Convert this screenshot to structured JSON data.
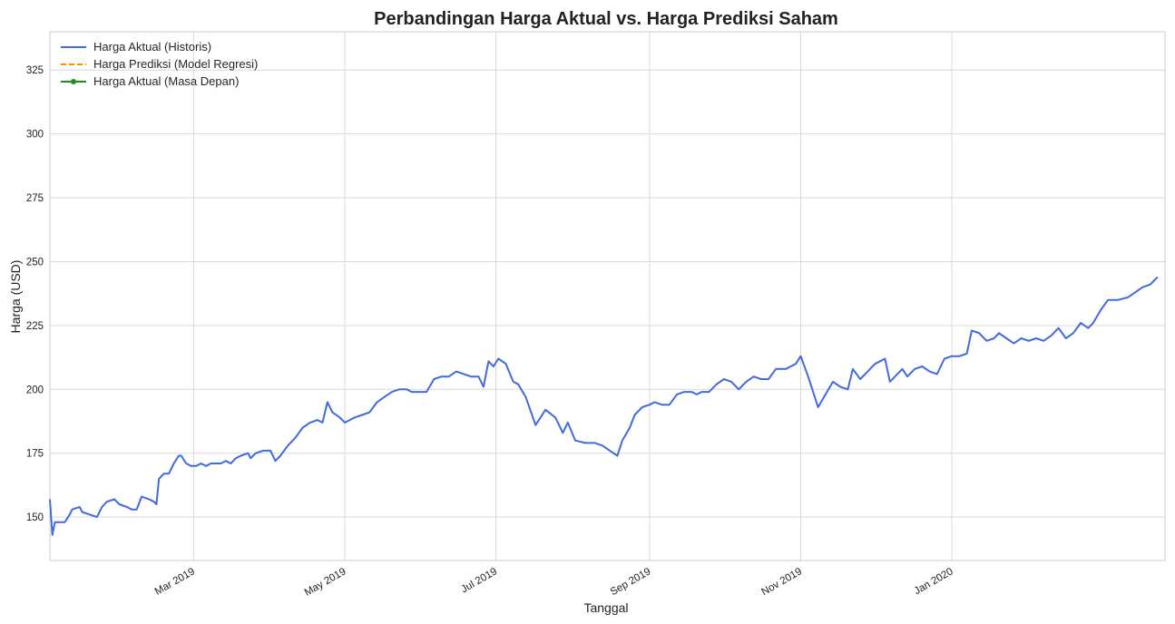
{
  "chart_data": {
    "type": "line",
    "title": "Perbandingan Harga Aktual vs. Harga Prediksi Saham",
    "xlabel": "Tanggal",
    "ylabel": "Harga (USD)",
    "xlim": [
      "2019-01-02",
      "2020-03-27"
    ],
    "ylim": [
      133,
      340
    ],
    "grid": true,
    "legend_position": "top-left",
    "x_ticks": [
      {
        "date": "2019-03-01",
        "label": "Mar 2019"
      },
      {
        "date": "2019-05-01",
        "label": "May 2019"
      },
      {
        "date": "2019-07-01",
        "label": "Jul 2019"
      },
      {
        "date": "2019-09-01",
        "label": "Sep 2019"
      },
      {
        "date": "2019-11-01",
        "label": "Nov 2019"
      },
      {
        "date": "2020-01-01",
        "label": "Jan 2020"
      }
    ],
    "y_ticks": [
      150,
      175,
      200,
      225,
      250,
      275,
      300,
      325
    ],
    "series": [
      {
        "name": "Harga Aktual (Historis)",
        "color": "#4169e1",
        "style": "solid",
        "points": [
          [
            "2019-01-02",
            157
          ],
          [
            "2019-01-03",
            143
          ],
          [
            "2019-01-04",
            148
          ],
          [
            "2019-01-07",
            148
          ],
          [
            "2019-01-08",
            148
          ],
          [
            "2019-01-10",
            151
          ],
          [
            "2019-01-11",
            153
          ],
          [
            "2019-01-14",
            154
          ],
          [
            "2019-01-15",
            152
          ],
          [
            "2019-01-18",
            151
          ],
          [
            "2019-01-21",
            150
          ],
          [
            "2019-01-23",
            154
          ],
          [
            "2019-01-25",
            156
          ],
          [
            "2019-01-28",
            157
          ],
          [
            "2019-01-30",
            155
          ],
          [
            "2019-02-02",
            154
          ],
          [
            "2019-02-04",
            153
          ],
          [
            "2019-02-06",
            153
          ],
          [
            "2019-02-08",
            158
          ],
          [
            "2019-02-11",
            157
          ],
          [
            "2019-02-13",
            156
          ],
          [
            "2019-02-14",
            155
          ],
          [
            "2019-02-15",
            165
          ],
          [
            "2019-02-17",
            167
          ],
          [
            "2019-02-19",
            167
          ],
          [
            "2019-02-21",
            171
          ],
          [
            "2019-02-23",
            174
          ],
          [
            "2019-02-24",
            174
          ],
          [
            "2019-02-26",
            171
          ],
          [
            "2019-02-28",
            170
          ],
          [
            "2019-03-02",
            170
          ],
          [
            "2019-03-04",
            171
          ],
          [
            "2019-03-06",
            170
          ],
          [
            "2019-03-08",
            171
          ],
          [
            "2019-03-12",
            171
          ],
          [
            "2019-03-14",
            172
          ],
          [
            "2019-03-16",
            171
          ],
          [
            "2019-03-18",
            173
          ],
          [
            "2019-03-20",
            174
          ],
          [
            "2019-03-23",
            175
          ],
          [
            "2019-03-24",
            173
          ],
          [
            "2019-03-26",
            175
          ],
          [
            "2019-03-29",
            176
          ],
          [
            "2019-04-01",
            176
          ],
          [
            "2019-04-03",
            172
          ],
          [
            "2019-04-05",
            174
          ],
          [
            "2019-04-08",
            178
          ],
          [
            "2019-04-11",
            181
          ],
          [
            "2019-04-14",
            185
          ],
          [
            "2019-04-17",
            187
          ],
          [
            "2019-04-20",
            188
          ],
          [
            "2019-04-22",
            187
          ],
          [
            "2019-04-24",
            195
          ],
          [
            "2019-04-26",
            191
          ],
          [
            "2019-04-29",
            189
          ],
          [
            "2019-05-01",
            187
          ],
          [
            "2019-05-03",
            188
          ],
          [
            "2019-05-05",
            189
          ],
          [
            "2019-05-08",
            190
          ],
          [
            "2019-05-11",
            191
          ],
          [
            "2019-05-14",
            195
          ],
          [
            "2019-05-17",
            197
          ],
          [
            "2019-05-20",
            199
          ],
          [
            "2019-05-23",
            200
          ],
          [
            "2019-05-26",
            200
          ],
          [
            "2019-05-28",
            199
          ],
          [
            "2019-05-31",
            199
          ],
          [
            "2019-06-03",
            199
          ],
          [
            "2019-06-06",
            204
          ],
          [
            "2019-06-09",
            205
          ],
          [
            "2019-06-12",
            205
          ],
          [
            "2019-06-15",
            207
          ],
          [
            "2019-06-18",
            206
          ],
          [
            "2019-06-21",
            205
          ],
          [
            "2019-06-24",
            205
          ],
          [
            "2019-06-26",
            201
          ],
          [
            "2019-06-28",
            211
          ],
          [
            "2019-06-30",
            209
          ],
          [
            "2019-07-02",
            212
          ],
          [
            "2019-07-05",
            210
          ],
          [
            "2019-07-08",
            203
          ],
          [
            "2019-07-10",
            202
          ],
          [
            "2019-07-13",
            197
          ],
          [
            "2019-07-17",
            186
          ],
          [
            "2019-07-21",
            192
          ],
          [
            "2019-07-25",
            189
          ],
          [
            "2019-07-28",
            183
          ],
          [
            "2019-07-30",
            187
          ],
          [
            "2019-08-02",
            180
          ],
          [
            "2019-08-06",
            179
          ],
          [
            "2019-08-10",
            179
          ],
          [
            "2019-08-13",
            178
          ],
          [
            "2019-08-16",
            176
          ],
          [
            "2019-08-19",
            174
          ],
          [
            "2019-08-21",
            180
          ],
          [
            "2019-08-24",
            185
          ],
          [
            "2019-08-26",
            190
          ],
          [
            "2019-08-29",
            193
          ],
          [
            "2019-09-01",
            194
          ],
          [
            "2019-09-03",
            195
          ],
          [
            "2019-09-06",
            194
          ],
          [
            "2019-09-09",
            194
          ],
          [
            "2019-09-12",
            198
          ],
          [
            "2019-09-15",
            199
          ],
          [
            "2019-09-18",
            199
          ],
          [
            "2019-09-20",
            198
          ],
          [
            "2019-09-22",
            199
          ],
          [
            "2019-09-25",
            199
          ],
          [
            "2019-09-28",
            202
          ],
          [
            "2019-10-01",
            204
          ],
          [
            "2019-10-04",
            203
          ],
          [
            "2019-10-07",
            200
          ],
          [
            "2019-10-10",
            203
          ],
          [
            "2019-10-13",
            205
          ],
          [
            "2019-10-16",
            204
          ],
          [
            "2019-10-19",
            204
          ],
          [
            "2019-10-22",
            208
          ],
          [
            "2019-10-26",
            208
          ],
          [
            "2019-10-30",
            210
          ],
          [
            "2019-11-01",
            213
          ],
          [
            "2019-11-04",
            205
          ],
          [
            "2019-11-08",
            193
          ],
          [
            "2019-11-11",
            198
          ],
          [
            "2019-11-14",
            203
          ],
          [
            "2019-11-17",
            201
          ],
          [
            "2019-11-20",
            200
          ],
          [
            "2019-11-22",
            208
          ],
          [
            "2019-11-25",
            204
          ],
          [
            "2019-11-28",
            207
          ],
          [
            "2019-12-01",
            210
          ],
          [
            "2019-12-03",
            211
          ],
          [
            "2019-12-05",
            212
          ],
          [
            "2019-12-07",
            203
          ],
          [
            "2019-12-10",
            206
          ],
          [
            "2019-12-12",
            208
          ],
          [
            "2019-12-14",
            205
          ],
          [
            "2019-12-17",
            208
          ],
          [
            "2019-12-20",
            209
          ],
          [
            "2019-12-23",
            207
          ],
          [
            "2019-12-26",
            206
          ],
          [
            "2019-12-29",
            212
          ],
          [
            "2020-01-01",
            213
          ],
          [
            "2020-01-04",
            213
          ],
          [
            "2020-01-07",
            214
          ],
          [
            "2020-01-09",
            223
          ],
          [
            "2020-01-12",
            222
          ],
          [
            "2020-01-15",
            219
          ],
          [
            "2020-01-18",
            220
          ],
          [
            "2020-01-20",
            222
          ],
          [
            "2020-01-23",
            220
          ],
          [
            "2020-01-26",
            218
          ],
          [
            "2020-01-29",
            220
          ],
          [
            "2020-02-01",
            219
          ],
          [
            "2020-02-04",
            220
          ],
          [
            "2020-02-07",
            219
          ],
          [
            "2020-02-10",
            221
          ],
          [
            "2020-02-13",
            224
          ],
          [
            "2020-02-16",
            220
          ],
          [
            "2020-02-19",
            222
          ],
          [
            "2020-02-22",
            226
          ],
          [
            "2020-02-25",
            224
          ],
          [
            "2020-02-27",
            226
          ],
          [
            "2020-03-01",
            231
          ],
          [
            "2020-03-04",
            235
          ],
          [
            "2020-03-08",
            235
          ],
          [
            "2020-03-12",
            236
          ],
          [
            "2020-03-15",
            238
          ],
          [
            "2020-03-18",
            240
          ],
          [
            "2020-03-21",
            241
          ],
          [
            "2020-03-24",
            244
          ]
        ]
      },
      {
        "name": "Harga Prediksi (Model Regresi)",
        "color": "#ff8c00",
        "style": "dashed",
        "points": []
      },
      {
        "name": "Harga Aktual (Masa Depan)",
        "color": "#228b22",
        "style": "solid-marker",
        "points": []
      }
    ]
  }
}
